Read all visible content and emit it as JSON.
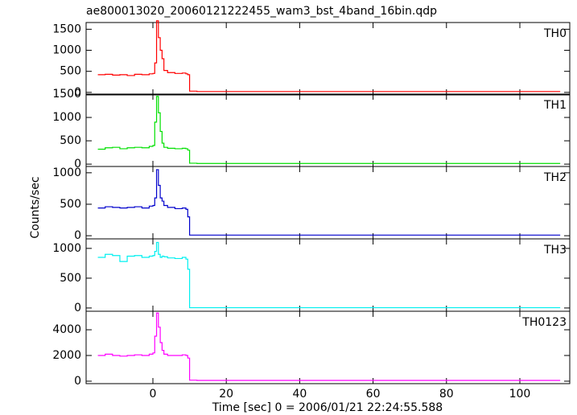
{
  "chart_data": [
    {
      "type": "line",
      "title": "ae800013020_20060121222455_wam3_bst_4band_16bin.qdp",
      "x": [
        -15,
        -13,
        -11,
        -9,
        -7,
        -5,
        -3,
        -1,
        0,
        0.5,
        1,
        1.5,
        2,
        2.5,
        3,
        4,
        6,
        8,
        9,
        9.5,
        10,
        12,
        20,
        40,
        60,
        80,
        100,
        111
      ],
      "series": [
        {
          "name": "TH0",
          "color": "#ff0000",
          "values": [
            420,
            430,
            410,
            420,
            400,
            430,
            420,
            440,
            450,
            700,
            1700,
            1300,
            1000,
            800,
            520,
            470,
            450,
            460,
            440,
            420,
            30,
            20,
            20,
            20,
            20,
            20,
            20,
            20
          ]
        }
      ],
      "xlim": [
        -18.2,
        113.6
      ],
      "xticks": [
        0,
        20,
        40,
        60,
        80,
        100
      ],
      "ylim": [
        -60,
        1660
      ],
      "yticks": [
        0,
        500,
        1000,
        1500
      ]
    },
    {
      "type": "line",
      "x": [
        -15,
        -13,
        -11,
        -9,
        -7,
        -5,
        -3,
        -1,
        0,
        0.5,
        1,
        1.5,
        2,
        2.5,
        3,
        4,
        6,
        8,
        9,
        9.5,
        10,
        12,
        20,
        40,
        60,
        80,
        100,
        111
      ],
      "series": [
        {
          "name": "TH1",
          "color": "#00e000",
          "values": [
            320,
            350,
            360,
            330,
            350,
            360,
            350,
            380,
            400,
            900,
            1450,
            1100,
            700,
            450,
            360,
            340,
            330,
            340,
            330,
            300,
            20,
            15,
            15,
            15,
            15,
            15,
            15,
            15
          ]
        }
      ],
      "xlim": [
        -18.2,
        113.6
      ],
      "xticks": [
        0,
        20,
        40,
        60,
        80,
        100
      ],
      "ylim": [
        -50,
        1500
      ],
      "yticks": [
        0,
        500,
        1000,
        1500
      ]
    },
    {
      "type": "line",
      "ylabel": "Counts/sec",
      "x": [
        -15,
        -13,
        -11,
        -9,
        -7,
        -5,
        -3,
        -1,
        0,
        0.5,
        1,
        1.5,
        2,
        2.5,
        3,
        4,
        6,
        8,
        9,
        9.5,
        10,
        12,
        20,
        40,
        60,
        80,
        100,
        111
      ],
      "series": [
        {
          "name": "TH2",
          "color": "#0000cc",
          "values": [
            440,
            460,
            450,
            440,
            450,
            460,
            440,
            470,
            480,
            600,
            1050,
            800,
            600,
            550,
            480,
            450,
            430,
            440,
            420,
            300,
            10,
            10,
            10,
            10,
            10,
            10,
            10,
            10
          ]
        }
      ],
      "xlim": [
        -18.2,
        113.6
      ],
      "xticks": [
        0,
        20,
        40,
        60,
        80,
        100
      ],
      "ylim": [
        -50,
        1100
      ],
      "yticks": [
        0,
        500,
        1000
      ]
    },
    {
      "type": "line",
      "x": [
        -15,
        -13,
        -11,
        -9,
        -7,
        -5,
        -3,
        -1,
        0,
        0.5,
        1,
        1.5,
        2,
        2.5,
        3,
        4,
        6,
        8,
        9,
        9.5,
        10,
        12,
        20,
        40,
        60,
        80,
        100,
        111
      ],
      "series": [
        {
          "name": "TH3",
          "color": "#00f0f0",
          "values": [
            850,
            900,
            880,
            780,
            870,
            880,
            850,
            870,
            880,
            950,
            1100,
            900,
            850,
            870,
            860,
            840,
            830,
            850,
            820,
            650,
            5,
            5,
            5,
            5,
            5,
            5,
            5,
            5
          ]
        }
      ],
      "xlim": [
        -18.2,
        113.6
      ],
      "xticks": [
        0,
        20,
        40,
        60,
        80,
        100
      ],
      "ylim": [
        -55,
        1160
      ],
      "yticks": [
        0,
        500,
        1000
      ]
    },
    {
      "type": "line",
      "xlabel": "Time [sec] 0 = 2006/01/21 22:24:55.588",
      "x": [
        -15,
        -13,
        -11,
        -9,
        -7,
        -5,
        -3,
        -1,
        0,
        0.5,
        1,
        1.5,
        2,
        2.5,
        3,
        4,
        6,
        8,
        9,
        9.5,
        10,
        12,
        20,
        40,
        60,
        80,
        100,
        111
      ],
      "series": [
        {
          "name": "TH0123",
          "color": "#ff00ff",
          "values": [
            2000,
            2100,
            2000,
            1950,
            2000,
            2050,
            2000,
            2100,
            2200,
            3500,
            5300,
            4200,
            3000,
            2400,
            2100,
            2000,
            2000,
            2050,
            2000,
            1800,
            80,
            60,
            60,
            60,
            60,
            60,
            60,
            60
          ]
        }
      ],
      "xlim": [
        -18.2,
        113.6
      ],
      "xticks": [
        0,
        20,
        40,
        60,
        80,
        100
      ],
      "ylim": [
        -190,
        5440
      ],
      "yticks": [
        0,
        2000,
        4000
      ]
    }
  ]
}
